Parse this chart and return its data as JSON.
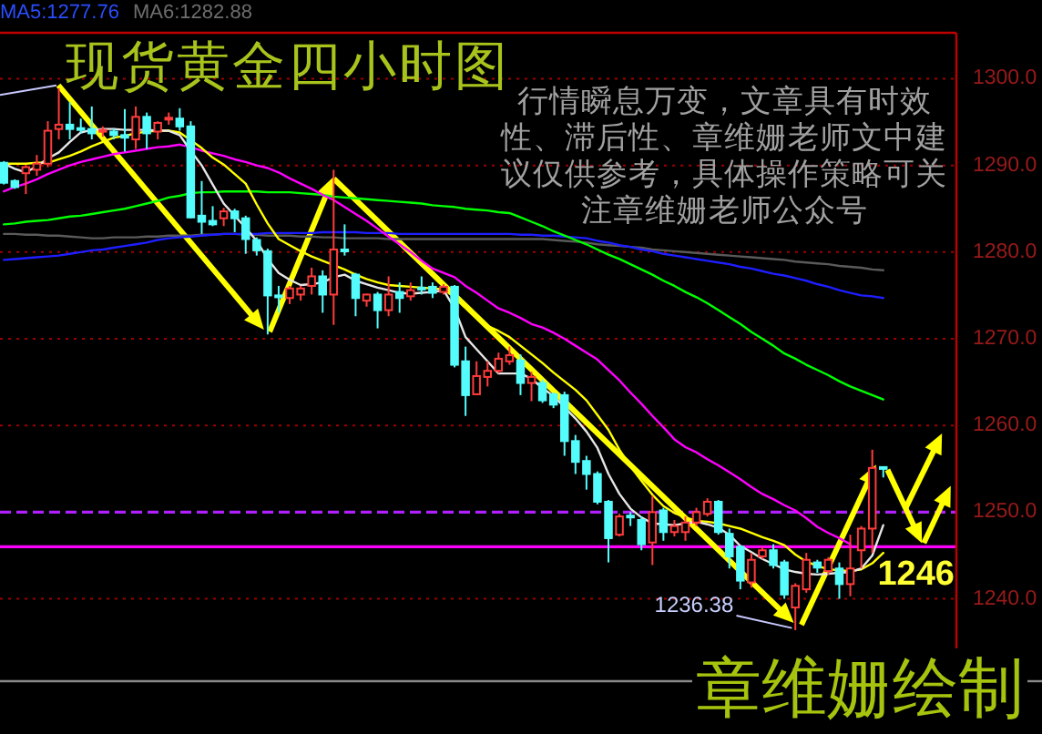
{
  "chart_data": {
    "type": "candlestick",
    "title": "现货黄金四小时图",
    "annotations": [
      "MA5:1277.76",
      "MA6:1282.88",
      "行情瞬息万变，文章具有时效性、滞后性、章维姗老师文中建议仅供参考，具体操作策略可关注章维姗老师公众号",
      "章维姗绘制",
      "1236.38"
    ],
    "categories": [
      null,
      null,
      null,
      null,
      null,
      null,
      null,
      null,
      null,
      null,
      null,
      null,
      null,
      null,
      null,
      null,
      null,
      null,
      null,
      null,
      null,
      null,
      null,
      null,
      null,
      null,
      null,
      null,
      null,
      null,
      null,
      null,
      null,
      null,
      null,
      null,
      null,
      null,
      null,
      null,
      null,
      null,
      null,
      null,
      null,
      null,
      null,
      null,
      null,
      null,
      null,
      null,
      null,
      null,
      null,
      null,
      null,
      null,
      null,
      null,
      null,
      null,
      null,
      null,
      null,
      null,
      null,
      null,
      null,
      null,
      null,
      null,
      null,
      null,
      null,
      null,
      null,
      null,
      null,
      null,
      null
    ],
    "ohlc": [
      [
        1290.3,
        1290.5,
        1287.8,
        1288.0
      ],
      [
        1288.2,
        1288.4,
        1287.3,
        1287.5
      ],
      [
        1289.1,
        1290.0,
        1286.7,
        1289.8
      ],
      [
        1289.5,
        1291.2,
        1288.8,
        1290.2
      ],
      [
        1290.2,
        1295.1,
        1289.8,
        1294.0
      ],
      [
        1294.2,
        1298.9,
        1293.0,
        1294.7
      ],
      [
        1294.7,
        1297.3,
        1293.0,
        1294.2
      ],
      [
        1294.3,
        1295.4,
        1293.7,
        1294.2
      ],
      [
        1294.2,
        1296.8,
        1293.0,
        1293.7
      ],
      [
        1293.9,
        1294.5,
        1293.3,
        1294.1
      ],
      [
        1293.9,
        1294.3,
        1293.0,
        1293.5
      ],
      [
        1293.5,
        1296.5,
        1291.6,
        1293.2
      ],
      [
        1293.0,
        1296.8,
        1291.9,
        1295.6
      ],
      [
        1295.6,
        1296.1,
        1291.9,
        1293.7
      ],
      [
        1293.9,
        1295.1,
        1293.0,
        1294.9
      ],
      [
        1295.3,
        1296.1,
        1294.7,
        1295.5
      ],
      [
        1295.4,
        1296.6,
        1294.0,
        1294.5
      ],
      [
        1294.5,
        1295.1,
        1283.9,
        1284.0
      ],
      [
        1284.2,
        1288.2,
        1282.1,
        1283.5
      ],
      [
        1283.6,
        1285.3,
        1283.0,
        1283.2
      ],
      [
        1283.9,
        1285.1,
        1283.0,
        1284.7
      ],
      [
        1284.7,
        1285.0,
        1282.3,
        1283.9
      ],
      [
        1283.9,
        1284.2,
        1279.8,
        1281.5
      ],
      [
        1281.4,
        1281.7,
        1279.6,
        1280.2
      ],
      [
        1280.1,
        1280.4,
        1270.5,
        1275.0
      ],
      [
        1275.0,
        1276.1,
        1273.0,
        1274.8
      ],
      [
        1274.7,
        1276.1,
        1274.0,
        1275.8
      ],
      [
        1275.1,
        1276.1,
        1274.4,
        1275.8
      ],
      [
        1276.1,
        1278.2,
        1275.1,
        1277.2
      ],
      [
        1277.2,
        1277.9,
        1273.0,
        1275.1
      ],
      [
        1275.1,
        1289.5,
        1271.6,
        1280.3
      ],
      [
        1280.3,
        1283.2,
        1279.6,
        1280.1
      ],
      [
        1277.4,
        1277.6,
        1272.6,
        1274.7
      ],
      [
        1274.4,
        1275.2,
        1273.7,
        1275.1
      ],
      [
        1275.1,
        1275.4,
        1271.2,
        1273.3
      ],
      [
        1273.3,
        1277.2,
        1272.6,
        1275.1
      ],
      [
        1275.4,
        1276.5,
        1273.0,
        1274.7
      ],
      [
        1274.9,
        1276.5,
        1274.4,
        1275.6
      ],
      [
        1275.9,
        1277.2,
        1275.1,
        1275.7
      ],
      [
        1276.0,
        1276.5,
        1274.7,
        1275.3
      ],
      [
        1275.4,
        1276.3,
        1275.1,
        1276.0
      ],
      [
        1276.0,
        1276.2,
        1266.7,
        1267.0
      ],
      [
        1267.4,
        1269.1,
        1261.1,
        1263.5
      ],
      [
        1263.6,
        1267.4,
        1263.5,
        1265.7
      ],
      [
        1265.6,
        1267.4,
        1264.5,
        1266.3
      ],
      [
        1266.3,
        1268.4,
        1266.0,
        1267.7
      ],
      [
        1267.4,
        1269.1,
        1267.0,
        1268.1
      ],
      [
        1267.5,
        1268.2,
        1263.5,
        1264.9
      ],
      [
        1264.9,
        1266.2,
        1262.8,
        1265.6
      ],
      [
        1264.9,
        1265.3,
        1262.6,
        1262.9
      ],
      [
        1263.6,
        1263.8,
        1262.0,
        1262.4
      ],
      [
        1263.5,
        1263.9,
        1256.5,
        1258.2
      ],
      [
        1258.2,
        1258.9,
        1254.4,
        1255.8
      ],
      [
        1255.9,
        1256.5,
        1252.6,
        1254.4
      ],
      [
        1254.4,
        1254.7,
        1250.9,
        1251.2
      ],
      [
        1251.2,
        1251.4,
        1244.2,
        1247.0
      ],
      [
        1247.4,
        1249.8,
        1247.2,
        1249.5
      ],
      [
        1249.6,
        1250.0,
        1248.4,
        1249.4
      ],
      [
        1249.1,
        1249.5,
        1245.6,
        1246.3
      ],
      [
        1246.5,
        1251.9,
        1243.9,
        1250.0
      ],
      [
        1250.2,
        1250.5,
        1246.7,
        1247.7
      ],
      [
        1247.7,
        1249.1,
        1247.2,
        1248.4
      ],
      [
        1247.7,
        1249.5,
        1246.7,
        1248.8
      ],
      [
        1248.8,
        1250.5,
        1248.4,
        1250.0
      ],
      [
        1249.8,
        1251.6,
        1249.5,
        1251.2
      ],
      [
        1251.2,
        1251.4,
        1247.4,
        1247.7
      ],
      [
        1247.5,
        1248.1,
        1243.5,
        1244.9
      ],
      [
        1246.0,
        1246.2,
        1241.1,
        1242.1
      ],
      [
        1241.9,
        1245.3,
        1241.3,
        1244.5
      ],
      [
        1244.9,
        1246.0,
        1244.6,
        1245.6
      ],
      [
        1245.6,
        1246.3,
        1243.5,
        1243.9
      ],
      [
        1244.2,
        1244.5,
        1240.0,
        1240.5
      ],
      [
        1239.0,
        1241.8,
        1236.38,
        1241.5
      ],
      [
        1241.1,
        1245.3,
        1240.7,
        1244.5
      ],
      [
        1244.2,
        1244.5,
        1243.0,
        1243.6
      ],
      [
        1243.2,
        1244.8,
        1242.8,
        1244.5
      ],
      [
        1243.5,
        1244.2,
        1240.0,
        1241.7
      ],
      [
        1241.7,
        1247.4,
        1240.3,
        1243.5
      ],
      [
        1245.6,
        1248.4,
        1243.5,
        1248.1
      ],
      [
        1248.1,
        1257.2,
        1245.3,
        1255.1
      ],
      [
        1255.2,
        1255.2,
        1254.0,
        1255.1
      ]
    ],
    "colors": [
      "#54fcfc",
      "#54fcfc",
      "#ff3c3c",
      "#ff3c3c",
      "#ff3c3c",
      "#ff3c3c",
      "#54fcfc",
      "#54fcfc",
      "#54fcfc",
      "#ff3c3c",
      "#54fcfc",
      "#54fcfc",
      "#ff3c3c",
      "#54fcfc",
      "#ff3c3c",
      "#ff3c3c",
      "#54fcfc",
      "#54fcfc",
      "#54fcfc",
      "#54fcfc",
      "#ff3c3c",
      "#54fcfc",
      "#54fcfc",
      "#54fcfc",
      "#54fcfc",
      "#54fcfc",
      "#ff3c3c",
      "#ff3c3c",
      "#ff3c3c",
      "#54fcfc",
      "#ff3c3c",
      "#54fcfc",
      "#54fcfc",
      "#ff3c3c",
      "#54fcfc",
      "#ff3c3c",
      "#54fcfc",
      "#ff3c3c",
      "#54fcfc",
      "#54fcfc",
      "#ff3c3c",
      "#54fcfc",
      "#54fcfc",
      "#ff3c3c",
      "#ff3c3c",
      "#ff3c3c",
      "#ff3c3c",
      "#54fcfc",
      "#ff3c3c",
      "#54fcfc",
      "#54fcfc",
      "#54fcfc",
      "#54fcfc",
      "#54fcfc",
      "#54fcfc",
      "#54fcfc",
      "#ff3c3c",
      "#54fcfc",
      "#54fcfc",
      "#ff3c3c",
      "#54fcfc",
      "#ff3c3c",
      "#ff3c3c",
      "#ff3c3c",
      "#ff3c3c",
      "#54fcfc",
      "#54fcfc",
      "#54fcfc",
      "#ff3c3c",
      "#ff3c3c",
      "#54fcfc",
      "#54fcfc",
      "#ff3c3c",
      "#ff3c3c",
      "#54fcfc",
      "#ff3c3c",
      "#54fcfc",
      "#ff3c3c",
      "#ff3c3c",
      "#ff3c3c",
      "#54fcfc"
    ],
    "series": [
      {
        "type": "line",
        "color": "#5a5a5a",
        "values": [
          1282.1,
          1282.1,
          1282.0,
          1282.0,
          1281.9,
          1281.9,
          1281.8,
          1281.7,
          1281.6,
          1281.6,
          1281.7,
          1281.7,
          1281.7,
          1281.8,
          1281.8,
          1281.9,
          1281.9,
          1281.9,
          1282.0,
          1282.0,
          1282.1,
          1282.1,
          1282.0,
          1282.0,
          1281.9,
          1281.9,
          1281.9,
          1281.8,
          1281.8,
          1281.7,
          1281.7,
          1281.6,
          1281.6,
          1281.6,
          1281.6,
          1281.5,
          1281.5,
          1281.5,
          1281.5,
          1281.5,
          1281.5,
          1281.5,
          1281.5,
          1281.5,
          1281.5,
          1281.5,
          1281.5,
          1281.5,
          1281.5,
          1281.5,
          1281.4,
          1281.3,
          1281.2,
          1281.1,
          1280.9,
          1280.8,
          1280.7,
          1280.6,
          1280.5,
          1280.3,
          1280.2,
          1280.1,
          1280.0,
          1279.9,
          1279.8,
          1279.7,
          1279.6,
          1279.5,
          1279.4,
          1279.3,
          1279.2,
          1279.1,
          1278.9,
          1278.8,
          1278.7,
          1278.6,
          1278.4,
          1278.3,
          1278.2,
          1278.0,
          1277.9
        ]
      },
      {
        "type": "line",
        "color": "#1e1eff",
        "values": [
          1279.1,
          1279.2,
          1279.3,
          1279.4,
          1279.5,
          1279.6,
          1279.8,
          1280.0,
          1280.2,
          1280.3,
          1280.5,
          1280.7,
          1280.9,
          1281.1,
          1281.4,
          1281.6,
          1281.7,
          1281.8,
          1281.9,
          1282.0,
          1282.1,
          1282.1,
          1282.1,
          1282.1,
          1282.2,
          1282.2,
          1282.2,
          1282.2,
          1282.2,
          1282.3,
          1282.3,
          1282.3,
          1282.3,
          1282.2,
          1282.2,
          1282.2,
          1282.1,
          1282.1,
          1282.1,
          1282.1,
          1282.1,
          1282.1,
          1282.1,
          1282.1,
          1282.1,
          1282.1,
          1282.1,
          1282.0,
          1282.0,
          1281.9,
          1281.9,
          1281.8,
          1281.7,
          1281.6,
          1281.3,
          1281.1,
          1280.8,
          1280.6,
          1280.3,
          1280.1,
          1279.8,
          1279.6,
          1279.4,
          1279.2,
          1279.0,
          1278.8,
          1278.6,
          1278.3,
          1278.1,
          1277.8,
          1277.5,
          1277.3,
          1277.0,
          1276.7,
          1276.3,
          1276.0,
          1275.6,
          1275.3,
          1275.0,
          1274.9,
          1274.7
        ]
      },
      {
        "type": "line",
        "color": "#00ff00",
        "values": [
          1283.2,
          1283.3,
          1283.5,
          1283.6,
          1283.7,
          1283.9,
          1284.1,
          1284.2,
          1284.4,
          1284.6,
          1284.8,
          1285.0,
          1285.3,
          1285.6,
          1285.9,
          1286.3,
          1286.5,
          1286.8,
          1286.9,
          1286.9,
          1287.0,
          1287.0,
          1287.0,
          1287.0,
          1286.9,
          1286.9,
          1286.9,
          1286.8,
          1286.7,
          1286.6,
          1286.4,
          1286.3,
          1286.2,
          1286.1,
          1286.0,
          1285.9,
          1285.8,
          1285.7,
          1285.6,
          1285.4,
          1285.3,
          1285.2,
          1285.0,
          1284.9,
          1284.8,
          1284.6,
          1284.5,
          1284.0,
          1283.5,
          1283.0,
          1282.4,
          1281.9,
          1281.4,
          1280.9,
          1280.3,
          1279.7,
          1279.2,
          1278.6,
          1278.0,
          1277.4,
          1276.7,
          1276.1,
          1275.4,
          1274.8,
          1274.1,
          1273.3,
          1272.5,
          1271.7,
          1270.8,
          1270.0,
          1269.2,
          1268.3,
          1267.7,
          1267.0,
          1266.4,
          1265.8,
          1265.1,
          1264.5,
          1264.0,
          1263.5,
          1263.0
        ]
      },
      {
        "type": "line",
        "color": "#ff00ff",
        "values": [
          1287.0,
          1287.5,
          1287.9,
          1288.4,
          1289.0,
          1289.5,
          1290.0,
          1290.4,
          1290.7,
          1291.0,
          1291.3,
          1291.5,
          1291.7,
          1291.9,
          1292.1,
          1292.2,
          1292.4,
          1292.1,
          1291.7,
          1291.4,
          1291.1,
          1290.7,
          1290.4,
          1290.0,
          1289.7,
          1289.2,
          1288.5,
          1287.9,
          1287.3,
          1286.6,
          1286.0,
          1285.2,
          1284.4,
          1283.6,
          1282.7,
          1281.8,
          1280.9,
          1280.0,
          1279.0,
          1278.1,
          1277.6,
          1277.1,
          1276.1,
          1275.3,
          1274.4,
          1273.5,
          1273.0,
          1272.4,
          1271.7,
          1271.3,
          1270.7,
          1270.0,
          1269.2,
          1268.4,
          1267.6,
          1266.4,
          1265.2,
          1263.8,
          1262.5,
          1261.1,
          1259.8,
          1258.4,
          1257.5,
          1256.9,
          1256.1,
          1255.4,
          1254.6,
          1253.8,
          1252.9,
          1252.1,
          1251.5,
          1250.8,
          1250.2,
          1249.3,
          1248.3,
          1247.6,
          1247.0,
          1246.3,
          null,
          null,
          null
        ]
      },
      {
        "type": "line",
        "color": "#ffff00",
        "values": [
          1290.2,
          1290.2,
          1290.2,
          1290.3,
          1290.3,
          1290.7,
          1291.1,
          1291.6,
          1292.2,
          1292.7,
          1293.2,
          1293.4,
          1293.7,
          1293.9,
          1294.0,
          1294.0,
          1293.8,
          1292.9,
          1292.0,
          1290.9,
          1290.1,
          1289.0,
          1287.9,
          1285.5,
          1283.3,
          1281.5,
          1280.8,
          1280.1,
          1279.5,
          1279.0,
          1278.5,
          1278.0,
          1277.4,
          1276.9,
          1276.5,
          1276.2,
          1276.1,
          1276.0,
          1275.9,
          1275.8,
          1275.7,
          1274.8,
          1273.6,
          1272.5,
          1271.5,
          1270.9,
          1270.2,
          1269.2,
          1268.2,
          1267.2,
          1266.1,
          1265.1,
          1264.1,
          1262.9,
          1261.2,
          1259.5,
          1257.2,
          1255.3,
          1253.6,
          1252.0,
          1250.7,
          1249.9,
          1249.4,
          1249.0,
          1248.9,
          1248.7,
          1248.4,
          1248.1,
          1247.6,
          1247.1,
          1246.7,
          1246.2,
          1245.1,
          1244.3,
          1243.8,
          1243.4,
          1243.3,
          1243.2,
          1243.4,
          1244.1,
          1245.3
        ]
      },
      {
        "type": "line",
        "color": "#e6e6e6",
        "values": [
          1290.2,
          1289.6,
          1289.2,
          1289.9,
          1290.8,
          1291.5,
          1292.7,
          1293.8,
          1294.1,
          1294.2,
          1294.2,
          1294.1,
          1294.1,
          1294.1,
          1294.0,
          1294.0,
          1293.5,
          1291.7,
          1290.0,
          1287.8,
          1285.6,
          1284.2,
          1282.8,
          1281.3,
          1279.2,
          1277.6,
          1276.8,
          1276.2,
          1276.3,
          1276.5,
          1277.1,
          1277.4,
          1276.7,
          1276.3,
          1275.9,
          1275.6,
          1275.3,
          1275.2,
          1275.3,
          1275.4,
          1275.6,
          1273.5,
          1270.2,
          1268.8,
          1267.4,
          1266.0,
          1266.0,
          1266.0,
          1265.4,
          1264.3,
          1263.4,
          1262.1,
          1260.8,
          1259.3,
          1257.4,
          1254.4,
          1252.1,
          1250.4,
          1249.4,
          1248.7,
          1248.6,
          1248.5,
          1248.7,
          1248.9,
          1248.6,
          1248.2,
          1247.4,
          1246.1,
          1245.4,
          1244.6,
          1244.0,
          1243.4,
          1243.1,
          1242.9,
          1242.8,
          1242.9,
          1243.0,
          1243.1,
          1243.5,
          1245.0,
          1248.5
        ]
      }
    ],
    "ylim": [
      1230.5,
      1305.3
    ],
    "yticks": [
      {
        "value": 1240,
        "label": "1240.0"
      },
      {
        "value": 1250,
        "label": "1250.0"
      },
      {
        "value": 1260,
        "label": "1260.0"
      },
      {
        "value": 1270,
        "label": "1270.0"
      },
      {
        "value": 1280,
        "label": "1280.0"
      },
      {
        "value": 1290,
        "label": "1290.0"
      },
      {
        "value": 1300,
        "label": "1300.0"
      }
    ],
    "grid": "y",
    "tick_labels": "y",
    "ref_lines": [
      {
        "axis": "y",
        "value": 1250,
        "color": "#b020ff",
        "line_style": "dashed"
      },
      {
        "axis": "y",
        "value": 1246,
        "label": "1246",
        "color": "#ff00ff"
      }
    ]
  }
}
